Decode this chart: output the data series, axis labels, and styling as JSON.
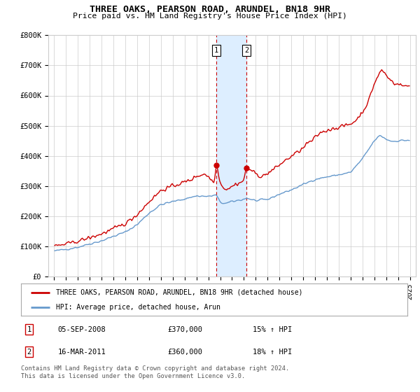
{
  "title": "THREE OAKS, PEARSON ROAD, ARUNDEL, BN18 9HR",
  "subtitle": "Price paid vs. HM Land Registry's House Price Index (HPI)",
  "legend_line1": "THREE OAKS, PEARSON ROAD, ARUNDEL, BN18 9HR (detached house)",
  "legend_line2": "HPI: Average price, detached house, Arun",
  "footnote1": "Contains HM Land Registry data © Crown copyright and database right 2024.",
  "footnote2": "This data is licensed under the Open Government Licence v3.0.",
  "transaction1_label": "1",
  "transaction1_date": "05-SEP-2008",
  "transaction1_price": "£370,000",
  "transaction1_hpi": "15% ↑ HPI",
  "transaction2_label": "2",
  "transaction2_date": "16-MAR-2011",
  "transaction2_price": "£360,000",
  "transaction2_hpi": "18% ↑ HPI",
  "red_color": "#cc0000",
  "blue_color": "#6699cc",
  "grid_color": "#cccccc",
  "background_color": "#ffffff",
  "plot_bg_color": "#ffffff",
  "shade_color": "#ddeeff",
  "transaction1_x": 2008.67,
  "transaction2_x": 2011.21,
  "ylim_min": 0,
  "ylim_max": 800000,
  "xlim_min": 1994.5,
  "xlim_max": 2025.5,
  "xticks": [
    1995,
    1996,
    1997,
    1998,
    1999,
    2000,
    2001,
    2002,
    2003,
    2004,
    2005,
    2006,
    2007,
    2008,
    2009,
    2010,
    2011,
    2012,
    2013,
    2014,
    2015,
    2016,
    2017,
    2018,
    2019,
    2020,
    2021,
    2022,
    2023,
    2024,
    2025
  ],
  "yticks": [
    0,
    100000,
    200000,
    300000,
    400000,
    500000,
    600000,
    700000,
    800000
  ],
  "ytick_labels": [
    "£0",
    "£100K",
    "£200K",
    "£300K",
    "£400K",
    "£500K",
    "£600K",
    "£700K",
    "£800K"
  ]
}
